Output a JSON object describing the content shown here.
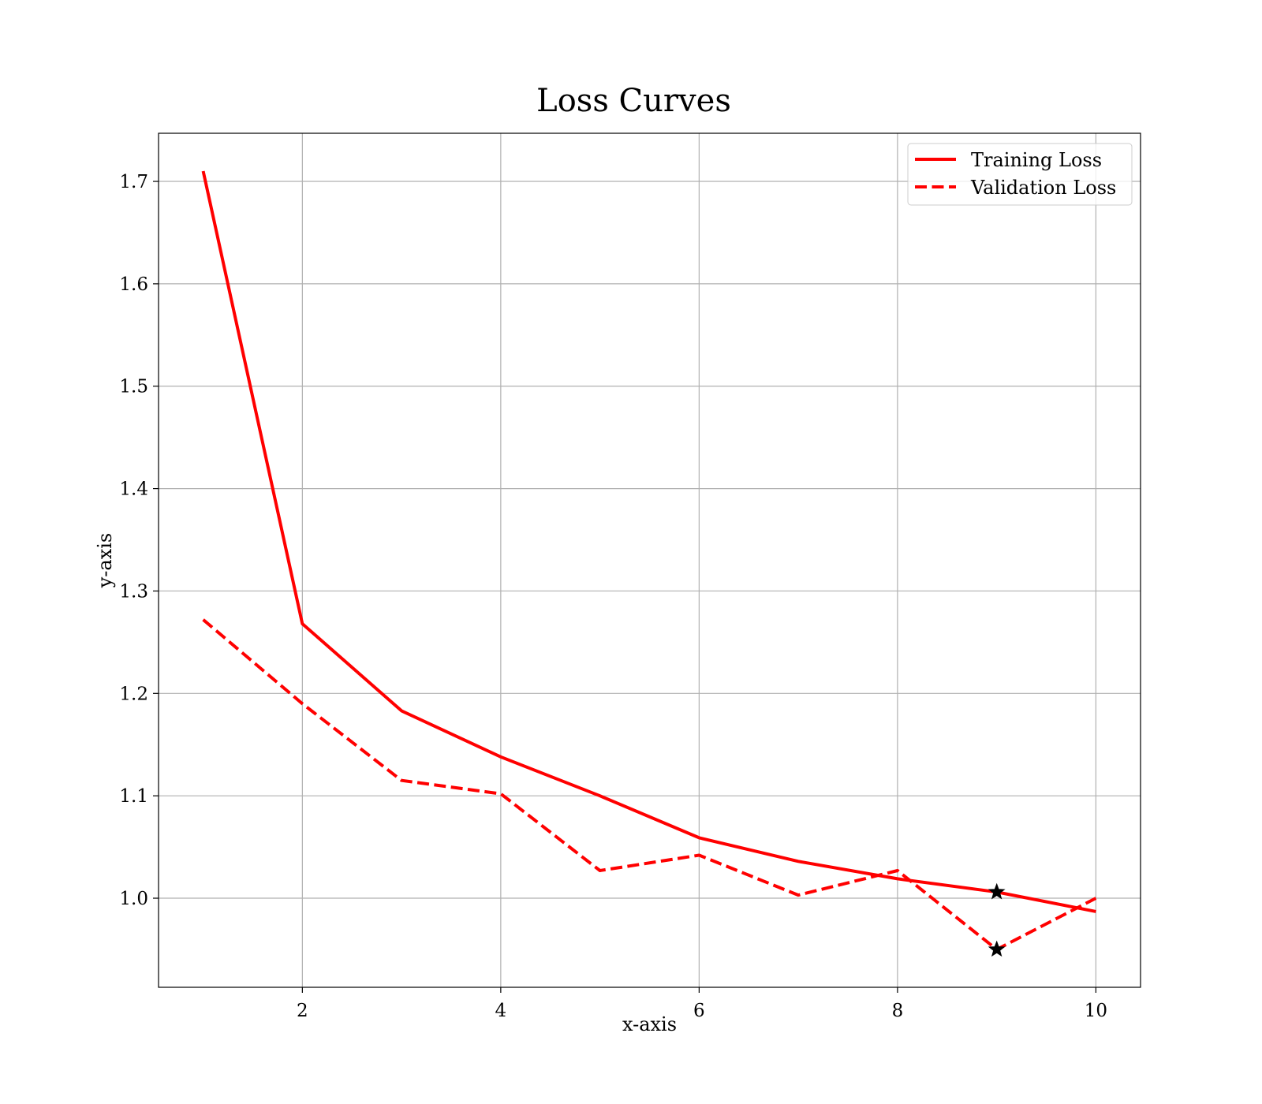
{
  "chart_data": {
    "type": "line",
    "title": "Loss Curves",
    "xlabel": "x-axis",
    "ylabel": "y-axis",
    "x": [
      1,
      2,
      3,
      4,
      5,
      6,
      7,
      8,
      9,
      10
    ],
    "series": [
      {
        "name": "Training Loss",
        "values": [
          1.71,
          1.268,
          1.183,
          1.138,
          1.1,
          1.059,
          1.036,
          1.019,
          1.006,
          0.987
        ],
        "color": "#ff0000",
        "style": "solid"
      },
      {
        "name": "Validation Loss",
        "values": [
          1.272,
          1.19,
          1.115,
          1.102,
          1.027,
          1.042,
          1.003,
          1.027,
          0.95,
          1.0
        ],
        "color": "#ff0000",
        "style": "dashed"
      }
    ],
    "markers": [
      {
        "series": "Training Loss",
        "x": 9,
        "y": 1.006,
        "shape": "star",
        "color": "#000000"
      },
      {
        "series": "Validation Loss",
        "x": 9,
        "y": 0.95,
        "shape": "star",
        "color": "#000000"
      }
    ],
    "xlim": [
      0.55,
      10.45
    ],
    "ylim": [
      0.913,
      1.747
    ],
    "xticks": [
      2,
      4,
      6,
      8,
      10
    ],
    "xtick_labels": [
      "2",
      "4",
      "6",
      "8",
      "10"
    ],
    "yticks": [
      1.0,
      1.1,
      1.2,
      1.3,
      1.4,
      1.5,
      1.6,
      1.7
    ],
    "ytick_labels": [
      "1.0",
      "1.1",
      "1.2",
      "1.3",
      "1.4",
      "1.5",
      "1.6",
      "1.7"
    ],
    "grid": true,
    "legend_position": "top-right"
  }
}
